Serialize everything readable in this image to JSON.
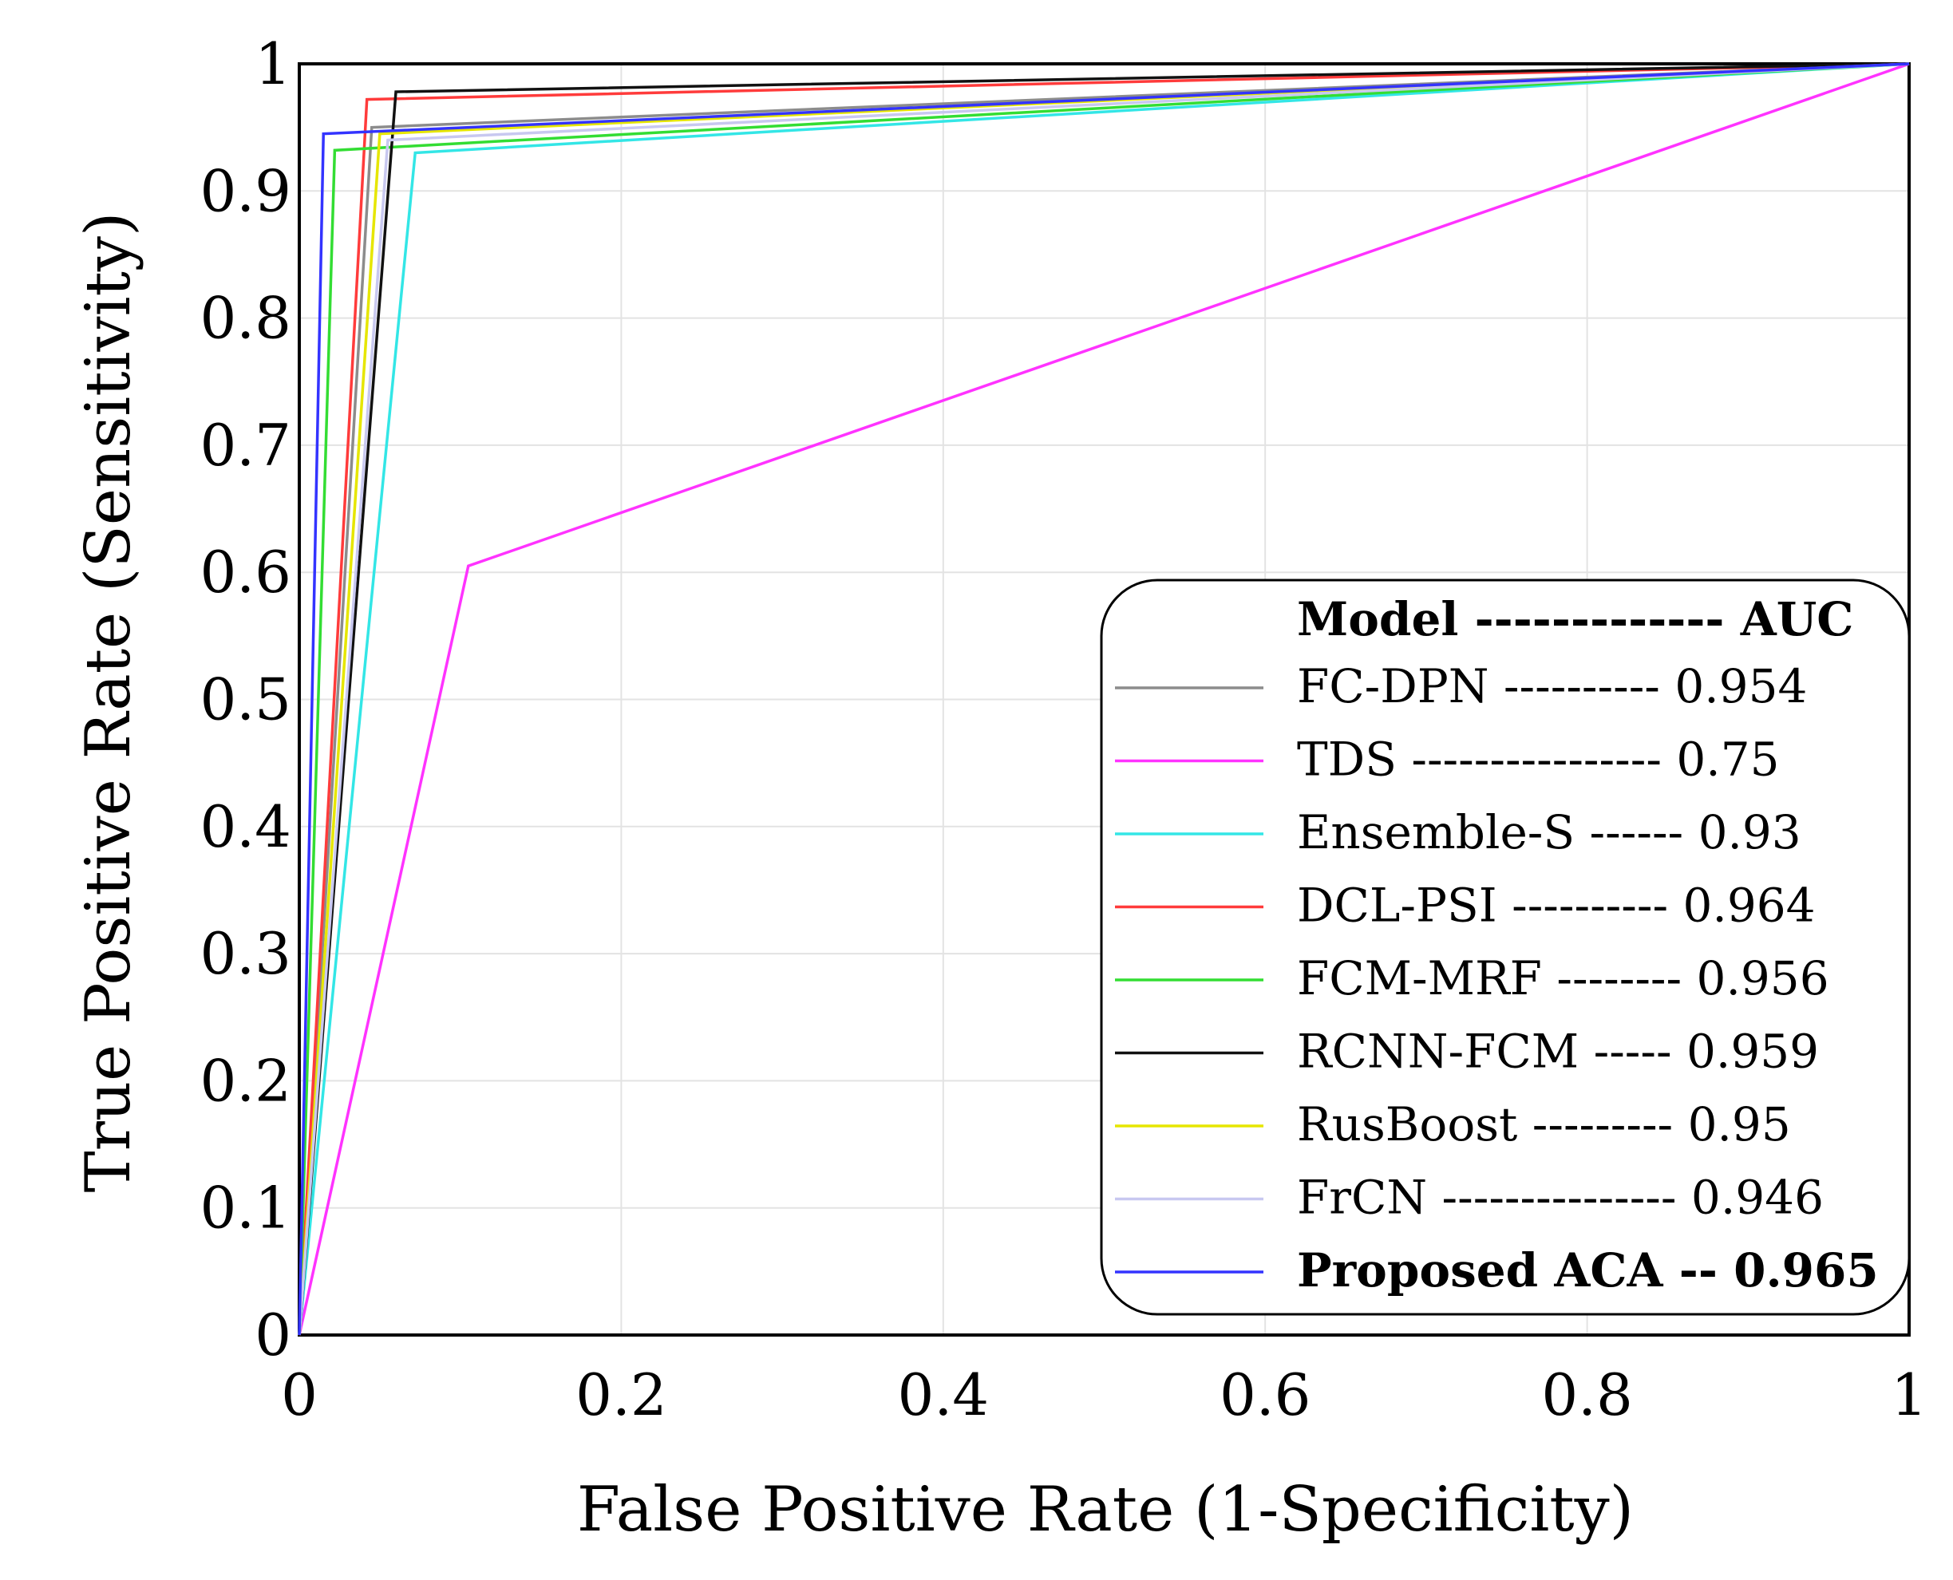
{
  "chart_data": {
    "type": "line",
    "xlabel": "False Positive Rate (1-Specificity)",
    "ylabel": "True Positive Rate (Sensitivity)",
    "xlim": [
      0,
      1
    ],
    "ylim": [
      0,
      1
    ],
    "xticks": [
      "0",
      "0.2",
      "0.4",
      "0.6",
      "0.8",
      "1"
    ],
    "yticks": [
      "0",
      "0.1",
      "0.2",
      "0.3",
      "0.4",
      "0.5",
      "0.6",
      "0.7",
      "0.8",
      "0.9",
      "1"
    ],
    "grid": true,
    "legend": {
      "position": "bottom-right",
      "header": "Model ------------- AUC",
      "entries": [
        "FC-DPN ---------- 0.954",
        "TDS ---------------- 0.75",
        "Ensemble-S ------ 0.93",
        "DCL-PSI ---------- 0.964",
        "FCM-MRF -------- 0.956",
        "RCNN-FCM ----- 0.959",
        "RusBoost --------- 0.95",
        "FrCN --------------- 0.946",
        "Proposed ACA -- 0.965"
      ]
    },
    "series": [
      {
        "name": "FC-DPN",
        "color": "#8c8c8c",
        "auc": 0.954,
        "x": [
          0,
          0.045,
          1
        ],
        "y": [
          0,
          0.95,
          1
        ]
      },
      {
        "name": "TDS",
        "color": "#ff33ff",
        "auc": 0.75,
        "x": [
          0,
          0.105,
          1
        ],
        "y": [
          0,
          0.605,
          1
        ]
      },
      {
        "name": "Ensemble-S",
        "color": "#33e6e6",
        "auc": 0.93,
        "x": [
          0,
          0.072,
          1
        ],
        "y": [
          0,
          0.93,
          1
        ]
      },
      {
        "name": "DCL-PSI",
        "color": "#ff3b3b",
        "auc": 0.964,
        "x": [
          0,
          0.042,
          1
        ],
        "y": [
          0,
          0.972,
          1
        ]
      },
      {
        "name": "FCM-MRF",
        "color": "#33dd33",
        "auc": 0.956,
        "x": [
          0,
          0.022,
          1
        ],
        "y": [
          0,
          0.932,
          1
        ]
      },
      {
        "name": "RCNN-FCM",
        "color": "#111111",
        "auc": 0.959,
        "x": [
          0,
          0.06,
          1
        ],
        "y": [
          0,
          0.978,
          1
        ]
      },
      {
        "name": "RusBoost",
        "color": "#e6e600",
        "auc": 0.95,
        "x": [
          0,
          0.05,
          1
        ],
        "y": [
          0,
          0.945,
          1
        ]
      },
      {
        "name": "FrCN",
        "color": "#c8c8f0",
        "auc": 0.946,
        "x": [
          0,
          0.055,
          1
        ],
        "y": [
          0,
          0.94,
          1
        ]
      },
      {
        "name": "Proposed ACA",
        "color": "#3333ff",
        "auc": 0.965,
        "x": [
          0,
          0.015,
          1
        ],
        "y": [
          0,
          0.945,
          1
        ]
      }
    ]
  }
}
